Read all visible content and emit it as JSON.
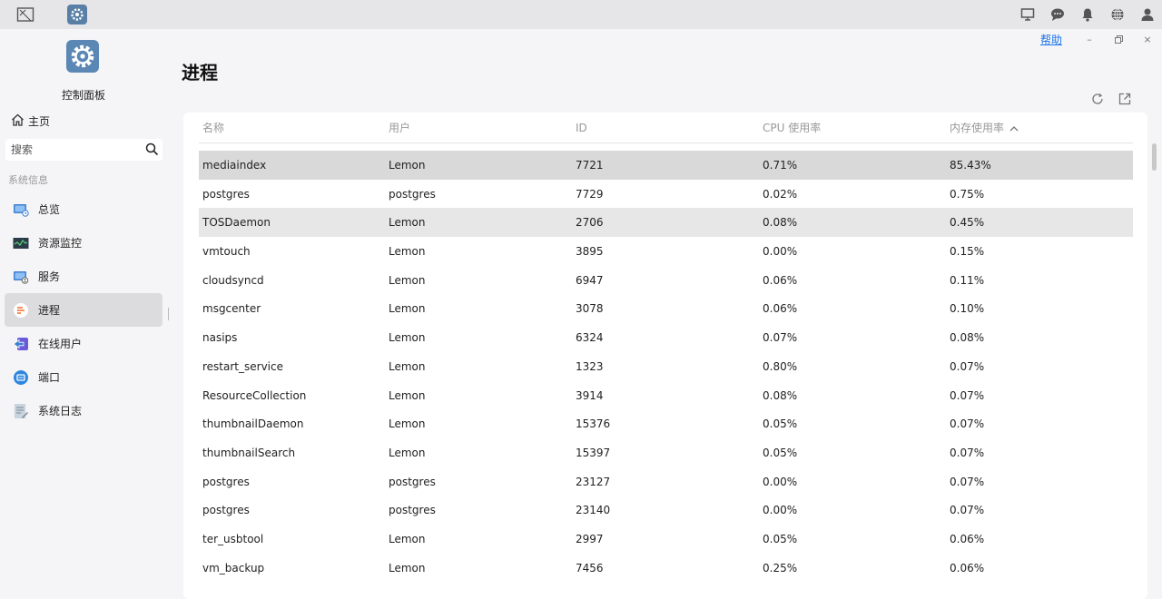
{
  "window": {
    "help_label": "帮助"
  },
  "sidebar": {
    "app_name": "控制面板",
    "home_label": "主页",
    "search_placeholder": "搜索",
    "section_label": "系统信息",
    "items": [
      {
        "label": "总览",
        "icon": "overview-icon"
      },
      {
        "label": "资源监控",
        "icon": "monitor-icon"
      },
      {
        "label": "服务",
        "icon": "services-icon"
      },
      {
        "label": "进程",
        "icon": "process-icon",
        "active": true
      },
      {
        "label": "在线用户",
        "icon": "online-users-icon"
      },
      {
        "label": "端口",
        "icon": "port-icon"
      },
      {
        "label": "系统日志",
        "icon": "log-icon"
      }
    ]
  },
  "main": {
    "title": "进程",
    "columns": [
      "名称",
      "用户",
      "ID",
      "CPU 使用率",
      "内存使用率"
    ],
    "rows": [
      [
        "mediaindex",
        "Lemon",
        "7721",
        "0.71%",
        "85.43%"
      ],
      [
        "postgres",
        "postgres",
        "7729",
        "0.02%",
        "0.75%"
      ],
      [
        "TOSDaemon",
        "Lemon",
        "2706",
        "0.08%",
        "0.45%"
      ],
      [
        "vmtouch",
        "Lemon",
        "3895",
        "0.00%",
        "0.15%"
      ],
      [
        "cloudsyncd",
        "Lemon",
        "6947",
        "0.06%",
        "0.11%"
      ],
      [
        "msgcenter",
        "Lemon",
        "3078",
        "0.06%",
        "0.10%"
      ],
      [
        "nasips",
        "Lemon",
        "6324",
        "0.07%",
        "0.08%"
      ],
      [
        "restart_service",
        "Lemon",
        "1323",
        "0.80%",
        "0.07%"
      ],
      [
        "ResourceCollection",
        "Lemon",
        "3914",
        "0.08%",
        "0.07%"
      ],
      [
        "thumbnailDaemon",
        "Lemon",
        "15376",
        "0.05%",
        "0.07%"
      ],
      [
        "thumbnailSearch",
        "Lemon",
        "15397",
        "0.05%",
        "0.07%"
      ],
      [
        "postgres",
        "postgres",
        "23127",
        "0.00%",
        "0.07%"
      ],
      [
        "postgres",
        "postgres",
        "23140",
        "0.00%",
        "0.07%"
      ],
      [
        "ter_usbtool",
        "Lemon",
        "2997",
        "0.05%",
        "0.06%"
      ],
      [
        "vm_backup",
        "Lemon",
        "7456",
        "0.25%",
        "0.06%"
      ]
    ]
  }
}
